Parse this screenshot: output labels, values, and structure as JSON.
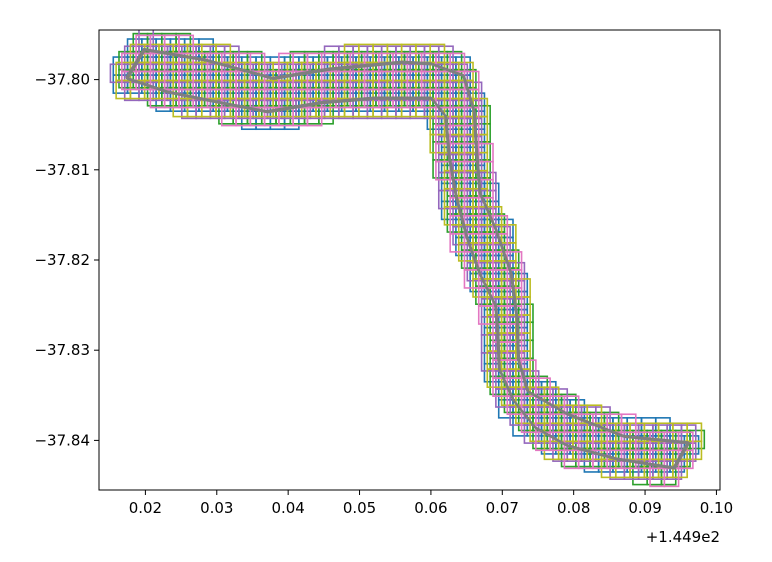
{
  "chart_data": {
    "type": "line",
    "title": "",
    "xlabel": "",
    "ylabel": "",
    "x_offset_text": "+1.449e2",
    "xlim": [
      0.0135,
      0.1005
    ],
    "ylim": [
      -37.8455,
      -37.7945
    ],
    "grid": false,
    "x_ticks": [
      {
        "value": 0.02,
        "label": "0.02"
      },
      {
        "value": 0.03,
        "label": "0.03"
      },
      {
        "value": 0.04,
        "label": "0.04"
      },
      {
        "value": 0.05,
        "label": "0.05"
      },
      {
        "value": 0.06,
        "label": "0.06"
      },
      {
        "value": 0.07,
        "label": "0.07"
      },
      {
        "value": 0.08,
        "label": "0.08"
      },
      {
        "value": 0.09,
        "label": "0.09"
      },
      {
        "value": 0.1,
        "label": "0.10"
      }
    ],
    "y_ticks": [
      {
        "value": -37.8,
        "label": "−37.80"
      },
      {
        "value": -37.81,
        "label": "−37.81"
      },
      {
        "value": -37.82,
        "label": "−37.82"
      },
      {
        "value": -37.83,
        "label": "−37.83"
      },
      {
        "value": -37.84,
        "label": "−37.84"
      }
    ],
    "palette": [
      "#1f77b4",
      "#2ca02c",
      "#9467bd",
      "#bcbd22",
      "#e377c2"
    ],
    "outline_color": "#7f7f7f",
    "cell_size": 0.002,
    "outline": [
      [
        0.0173,
        -37.7998
      ],
      [
        0.0198,
        -37.7966
      ],
      [
        0.0285,
        -37.7978
      ],
      [
        0.0378,
        -37.7998
      ],
      [
        0.0455,
        -37.7988
      ],
      [
        0.056,
        -37.798
      ],
      [
        0.06,
        -37.7982
      ],
      [
        0.0645,
        -37.7995
      ],
      [
        0.066,
        -37.8035
      ],
      [
        0.0663,
        -37.8075
      ],
      [
        0.0668,
        -37.8125
      ],
      [
        0.069,
        -37.8165
      ],
      [
        0.0712,
        -37.8215
      ],
      [
        0.072,
        -37.8265
      ],
      [
        0.0722,
        -37.831
      ],
      [
        0.0735,
        -37.8345
      ],
      [
        0.079,
        -37.837
      ],
      [
        0.087,
        -37.8395
      ],
      [
        0.096,
        -37.8402
      ],
      [
        0.094,
        -37.843
      ],
      [
        0.086,
        -37.842
      ],
      [
        0.079,
        -37.8405
      ],
      [
        0.0745,
        -37.8385
      ],
      [
        0.0715,
        -37.8355
      ],
      [
        0.0695,
        -37.832
      ],
      [
        0.0693,
        -37.828
      ],
      [
        0.069,
        -37.825
      ],
      [
        0.0668,
        -37.8215
      ],
      [
        0.065,
        -37.8175
      ],
      [
        0.0635,
        -37.813
      ],
      [
        0.0625,
        -37.8085
      ],
      [
        0.062,
        -37.804
      ],
      [
        0.06,
        -37.802
      ],
      [
        0.052,
        -37.802
      ],
      [
        0.0445,
        -37.8025
      ],
      [
        0.037,
        -37.8035
      ],
      [
        0.0305,
        -37.8025
      ],
      [
        0.023,
        -37.8013
      ],
      [
        0.0173,
        -37.7998
      ]
    ],
    "annotation_offset_label": "+1.449e2"
  }
}
